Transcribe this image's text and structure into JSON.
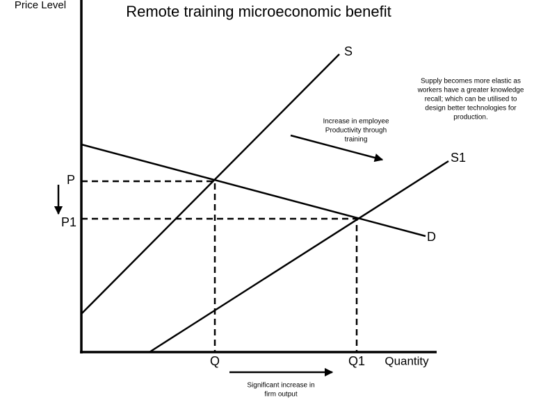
{
  "title": "Remote training microeconomic benefit",
  "axes": {
    "y_label": "Price Level",
    "x_label": "Quantity"
  },
  "curves": {
    "supply": "S",
    "supply_new": "S1",
    "demand": "D"
  },
  "prices": {
    "original": "P",
    "new": "P1"
  },
  "quantities": {
    "original": "Q",
    "new": "Q1"
  },
  "annotations": {
    "productivity": [
      "Increase in employee",
      "Productivity through",
      "training"
    ],
    "elasticity": [
      "Supply becomes more elastic as",
      "workers have a greater knowledge",
      "recall; which can be utilised to",
      "design better technologies for",
      "production."
    ],
    "output": [
      "Significant increase in",
      "firm output"
    ]
  }
}
